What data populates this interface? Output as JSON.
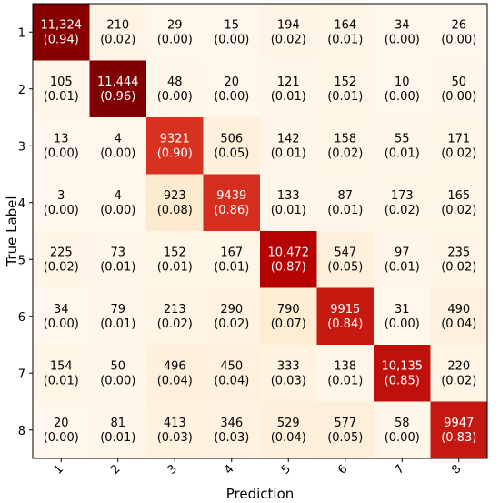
{
  "chart_data": {
    "type": "heatmap",
    "title": "",
    "xlabel": "Prediction",
    "ylabel": "True Label",
    "x_categories": [
      "1",
      "2",
      "3",
      "4",
      "5",
      "6",
      "7",
      "8"
    ],
    "y_categories": [
      "1",
      "2",
      "3",
      "4",
      "5",
      "6",
      "7",
      "8"
    ],
    "counts": [
      [
        "11,324",
        "210",
        "29",
        "15",
        "194",
        "164",
        "34",
        "26"
      ],
      [
        "105",
        "11,444",
        "48",
        "20",
        "121",
        "152",
        "10",
        "50"
      ],
      [
        "13",
        "4",
        "9321",
        "506",
        "142",
        "158",
        "55",
        "171"
      ],
      [
        "3",
        "4",
        "923",
        "9439",
        "133",
        "87",
        "173",
        "165"
      ],
      [
        "225",
        "73",
        "152",
        "167",
        "10,472",
        "547",
        "97",
        "235"
      ],
      [
        "34",
        "79",
        "213",
        "290",
        "790",
        "9915",
        "31",
        "490"
      ],
      [
        "154",
        "50",
        "496",
        "450",
        "333",
        "138",
        "10,135",
        "220"
      ],
      [
        "20",
        "81",
        "413",
        "346",
        "529",
        "577",
        "58",
        "9947"
      ]
    ],
    "proportions": [
      [
        "(0.94)",
        "(0.02)",
        "(0.00)",
        "(0.00)",
        "(0.02)",
        "(0.01)",
        "(0.00)",
        "(0.00)"
      ],
      [
        "(0.01)",
        "(0.96)",
        "(0.00)",
        "(0.00)",
        "(0.01)",
        "(0.01)",
        "(0.00)",
        "(0.00)"
      ],
      [
        "(0.00)",
        "(0.00)",
        "(0.90)",
        "(0.05)",
        "(0.01)",
        "(0.02)",
        "(0.01)",
        "(0.02)"
      ],
      [
        "(0.00)",
        "(0.00)",
        "(0.08)",
        "(0.86)",
        "(0.01)",
        "(0.01)",
        "(0.02)",
        "(0.02)"
      ],
      [
        "(0.02)",
        "(0.01)",
        "(0.01)",
        "(0.01)",
        "(0.87)",
        "(0.05)",
        "(0.01)",
        "(0.02)"
      ],
      [
        "(0.00)",
        "(0.01)",
        "(0.02)",
        "(0.02)",
        "(0.07)",
        "(0.84)",
        "(0.00)",
        "(0.04)"
      ],
      [
        "(0.01)",
        "(0.00)",
        "(0.04)",
        "(0.04)",
        "(0.03)",
        "(0.01)",
        "(0.85)",
        "(0.02)"
      ],
      [
        "(0.00)",
        "(0.01)",
        "(0.03)",
        "(0.03)",
        "(0.04)",
        "(0.05)",
        "(0.00)",
        "(0.83)"
      ]
    ],
    "colormap": {
      "low": "#fff7ec",
      "high": "#7f0000"
    },
    "grid": false,
    "legend": "none"
  }
}
